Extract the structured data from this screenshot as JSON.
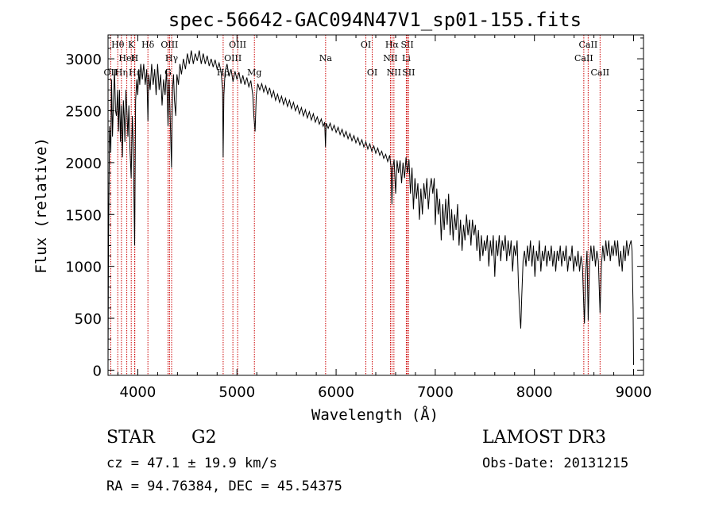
{
  "chart_data": {
    "type": "line",
    "title": "spec-56642-GAC094N47V1_sp01-155.fits",
    "xlabel": "Wavelength (Å)",
    "ylabel": "Flux (relative)",
    "xlim": [
      3700,
      9100
    ],
    "ylim": [
      -50,
      3230
    ],
    "xticks": [
      4000,
      5000,
      6000,
      7000,
      8000,
      9000
    ],
    "yticks": [
      0,
      500,
      1000,
      1500,
      2000,
      2500,
      3000
    ],
    "spectrum": [
      [
        3700,
        100
      ],
      [
        3705,
        1250
      ],
      [
        3715,
        2350
      ],
      [
        3728,
        2100
      ],
      [
        3735,
        2800
      ],
      [
        3745,
        2250
      ],
      [
        3755,
        2600
      ],
      [
        3765,
        2900
      ],
      [
        3775,
        2500
      ],
      [
        3785,
        2450
      ],
      [
        3797,
        2700
      ],
      [
        3805,
        2300
      ],
      [
        3815,
        2700
      ],
      [
        3825,
        2200
      ],
      [
        3835,
        2550
      ],
      [
        3845,
        2050
      ],
      [
        3855,
        2600
      ],
      [
        3865,
        2400
      ],
      [
        3870,
        2200
      ],
      [
        3880,
        2700
      ],
      [
        3890,
        2500
      ],
      [
        3900,
        2250
      ],
      [
        3910,
        2550
      ],
      [
        3920,
        2150
      ],
      [
        3933,
        1850
      ],
      [
        3945,
        2450
      ],
      [
        3955,
        2150
      ],
      [
        3968,
        1200
      ],
      [
        3978,
        2600
      ],
      [
        3990,
        2800
      ],
      [
        4000,
        2650
      ],
      [
        4010,
        2900
      ],
      [
        4020,
        2750
      ],
      [
        4030,
        2950
      ],
      [
        4045,
        2800
      ],
      [
        4060,
        2950
      ],
      [
        4075,
        2750
      ],
      [
        4090,
        2900
      ],
      [
        4102,
        2400
      ],
      [
        4110,
        2850
      ],
      [
        4125,
        2700
      ],
      [
        4140,
        2950
      ],
      [
        4155,
        2750
      ],
      [
        4170,
        2900
      ],
      [
        4185,
        2650
      ],
      [
        4200,
        2950
      ],
      [
        4215,
        2700
      ],
      [
        4230,
        2850
      ],
      [
        4245,
        2550
      ],
      [
        4260,
        2800
      ],
      [
        4275,
        2650
      ],
      [
        4290,
        2900
      ],
      [
        4305,
        2350
      ],
      [
        4315,
        2800
      ],
      [
        4325,
        2500
      ],
      [
        4340,
        1950
      ],
      [
        4350,
        2700
      ],
      [
        4360,
        2850
      ],
      [
        4370,
        2600
      ],
      [
        4383,
        2450
      ],
      [
        4395,
        2850
      ],
      [
        4410,
        2750
      ],
      [
        4425,
        2950
      ],
      [
        4440,
        2850
      ],
      [
        4460,
        3000
      ],
      [
        4480,
        2900
      ],
      [
        4500,
        3050
      ],
      [
        4520,
        2950
      ],
      [
        4540,
        3080
      ],
      [
        4560,
        2950
      ],
      [
        4580,
        3050
      ],
      [
        4600,
        2980
      ],
      [
        4620,
        3080
      ],
      [
        4640,
        2950
      ],
      [
        4660,
        3050
      ],
      [
        4680,
        2950
      ],
      [
        4700,
        3030
      ],
      [
        4720,
        2930
      ],
      [
        4740,
        3000
      ],
      [
        4760,
        2920
      ],
      [
        4780,
        2990
      ],
      [
        4800,
        2900
      ],
      [
        4820,
        2960
      ],
      [
        4840,
        2870
      ],
      [
        4855,
        2700
      ],
      [
        4861,
        2050
      ],
      [
        4868,
        2650
      ],
      [
        4880,
        2870
      ],
      [
        4900,
        2950
      ],
      [
        4920,
        2830
      ],
      [
        4940,
        2900
      ],
      [
        4960,
        2780
      ],
      [
        4980,
        2880
      ],
      [
        5000,
        2800
      ],
      [
        5020,
        2870
      ],
      [
        5040,
        2760
      ],
      [
        5060,
        2840
      ],
      [
        5080,
        2750
      ],
      [
        5100,
        2820
      ],
      [
        5120,
        2730
      ],
      [
        5140,
        2790
      ],
      [
        5160,
        2650
      ],
      [
        5170,
        2450
      ],
      [
        5183,
        2300
      ],
      [
        5195,
        2650
      ],
      [
        5210,
        2760
      ],
      [
        5230,
        2700
      ],
      [
        5250,
        2760
      ],
      [
        5270,
        2680
      ],
      [
        5290,
        2740
      ],
      [
        5310,
        2660
      ],
      [
        5330,
        2720
      ],
      [
        5350,
        2630
      ],
      [
        5370,
        2690
      ],
      [
        5390,
        2600
      ],
      [
        5410,
        2660
      ],
      [
        5430,
        2580
      ],
      [
        5450,
        2640
      ],
      [
        5470,
        2560
      ],
      [
        5490,
        2620
      ],
      [
        5510,
        2540
      ],
      [
        5530,
        2600
      ],
      [
        5550,
        2520
      ],
      [
        5570,
        2580
      ],
      [
        5590,
        2500
      ],
      [
        5610,
        2550
      ],
      [
        5630,
        2470
      ],
      [
        5650,
        2530
      ],
      [
        5670,
        2450
      ],
      [
        5690,
        2510
      ],
      [
        5710,
        2430
      ],
      [
        5730,
        2490
      ],
      [
        5750,
        2410
      ],
      [
        5770,
        2470
      ],
      [
        5790,
        2390
      ],
      [
        5810,
        2440
      ],
      [
        5830,
        2370
      ],
      [
        5850,
        2420
      ],
      [
        5870,
        2350
      ],
      [
        5885,
        2390
      ],
      [
        5893,
        2150
      ],
      [
        5900,
        2380
      ],
      [
        5920,
        2330
      ],
      [
        5940,
        2380
      ],
      [
        5960,
        2310
      ],
      [
        5980,
        2360
      ],
      [
        6000,
        2290
      ],
      [
        6020,
        2340
      ],
      [
        6040,
        2270
      ],
      [
        6060,
        2320
      ],
      [
        6080,
        2250
      ],
      [
        6100,
        2300
      ],
      [
        6120,
        2230
      ],
      [
        6140,
        2280
      ],
      [
        6160,
        2210
      ],
      [
        6180,
        2260
      ],
      [
        6200,
        2190
      ],
      [
        6220,
        2240
      ],
      [
        6240,
        2170
      ],
      [
        6260,
        2220
      ],
      [
        6280,
        2150
      ],
      [
        6300,
        2200
      ],
      [
        6320,
        2130
      ],
      [
        6340,
        2180
      ],
      [
        6360,
        2110
      ],
      [
        6380,
        2160
      ],
      [
        6400,
        2090
      ],
      [
        6420,
        2140
      ],
      [
        6440,
        2070
      ],
      [
        6460,
        2110
      ],
      [
        6480,
        2040
      ],
      [
        6500,
        2080
      ],
      [
        6520,
        2010
      ],
      [
        6540,
        2070
      ],
      [
        6555,
        1950
      ],
      [
        6563,
        1600
      ],
      [
        6572,
        1950
      ],
      [
        6585,
        2030
      ],
      [
        6600,
        1700
      ],
      [
        6615,
        2020
      ],
      [
        6630,
        1900
      ],
      [
        6645,
        2020
      ],
      [
        6660,
        1800
      ],
      [
        6675,
        2000
      ],
      [
        6690,
        1850
      ],
      [
        6705,
        2050
      ],
      [
        6720,
        1900
      ],
      [
        6735,
        2030
      ],
      [
        6750,
        1700
      ],
      [
        6765,
        1950
      ],
      [
        6780,
        1550
      ],
      [
        6795,
        1850
      ],
      [
        6810,
        1650
      ],
      [
        6825,
        1800
      ],
      [
        6840,
        1450
      ],
      [
        6855,
        1750
      ],
      [
        6870,
        1500
      ],
      [
        6885,
        1800
      ],
      [
        6900,
        1650
      ],
      [
        6915,
        1850
      ],
      [
        6930,
        1550
      ],
      [
        6945,
        1750
      ],
      [
        6960,
        1850
      ],
      [
        6975,
        1700
      ],
      [
        6990,
        1850
      ],
      [
        7000,
        1400
      ],
      [
        7015,
        1750
      ],
      [
        7030,
        1500
      ],
      [
        7045,
        1650
      ],
      [
        7060,
        1250
      ],
      [
        7075,
        1600
      ],
      [
        7090,
        1350
      ],
      [
        7105,
        1650
      ],
      [
        7120,
        1400
      ],
      [
        7135,
        1700
      ],
      [
        7150,
        1300
      ],
      [
        7165,
        1550
      ],
      [
        7180,
        1250
      ],
      [
        7195,
        1500
      ],
      [
        7210,
        1350
      ],
      [
        7225,
        1600
      ],
      [
        7240,
        1200
      ],
      [
        7255,
        1450
      ],
      [
        7270,
        1150
      ],
      [
        7285,
        1400
      ],
      [
        7300,
        1250
      ],
      [
        7315,
        1500
      ],
      [
        7330,
        1300
      ],
      [
        7345,
        1450
      ],
      [
        7360,
        1200
      ],
      [
        7375,
        1450
      ],
      [
        7390,
        1300
      ],
      [
        7405,
        1400
      ],
      [
        7420,
        1150
      ],
      [
        7435,
        1350
      ],
      [
        7450,
        1050
      ],
      [
        7465,
        1300
      ],
      [
        7480,
        1100
      ],
      [
        7495,
        1250
      ],
      [
        7510,
        1150
      ],
      [
        7525,
        1300
      ],
      [
        7540,
        1000
      ],
      [
        7555,
        1250
      ],
      [
        7570,
        1100
      ],
      [
        7585,
        1300
      ],
      [
        7600,
        900
      ],
      [
        7615,
        1250
      ],
      [
        7630,
        1100
      ],
      [
        7645,
        1300
      ],
      [
        7660,
        1050
      ],
      [
        7675,
        1250
      ],
      [
        7690,
        1150
      ],
      [
        7705,
        1300
      ],
      [
        7720,
        1050
      ],
      [
        7735,
        1250
      ],
      [
        7750,
        1100
      ],
      [
        7765,
        1250
      ],
      [
        7780,
        950
      ],
      [
        7795,
        1200
      ],
      [
        7810,
        1100
      ],
      [
        7825,
        1250
      ],
      [
        7840,
        800
      ],
      [
        7852,
        550
      ],
      [
        7862,
        400
      ],
      [
        7872,
        700
      ],
      [
        7885,
        1050
      ],
      [
        7900,
        1150
      ],
      [
        7915,
        1000
      ],
      [
        7930,
        1200
      ],
      [
        7945,
        1050
      ],
      [
        7960,
        1250
      ],
      [
        7975,
        1000
      ],
      [
        7990,
        1200
      ],
      [
        8005,
        900
      ],
      [
        8020,
        1150
      ],
      [
        8035,
        1050
      ],
      [
        8050,
        1250
      ],
      [
        8065,
        950
      ],
      [
        8080,
        1150
      ],
      [
        8095,
        1050
      ],
      [
        8110,
        1200
      ],
      [
        8125,
        1000
      ],
      [
        8140,
        1150
      ],
      [
        8155,
        1050
      ],
      [
        8170,
        1200
      ],
      [
        8185,
        1000
      ],
      [
        8200,
        1150
      ],
      [
        8215,
        950
      ],
      [
        8230,
        1150
      ],
      [
        8245,
        1050
      ],
      [
        8260,
        1200
      ],
      [
        8275,
        1000
      ],
      [
        8290,
        1150
      ],
      [
        8305,
        1050
      ],
      [
        8320,
        1200
      ],
      [
        8335,
        950
      ],
      [
        8350,
        1100
      ],
      [
        8365,
        1050
      ],
      [
        8380,
        1200
      ],
      [
        8395,
        950
      ],
      [
        8410,
        1100
      ],
      [
        8425,
        1000
      ],
      [
        8440,
        1150
      ],
      [
        8455,
        950
      ],
      [
        8470,
        1100
      ],
      [
        8485,
        1000
      ],
      [
        8498,
        600
      ],
      [
        8505,
        450
      ],
      [
        8515,
        900
      ],
      [
        8530,
        1150
      ],
      [
        8542,
        480
      ],
      [
        8555,
        1000
      ],
      [
        8570,
        1200
      ],
      [
        8585,
        1050
      ],
      [
        8600,
        1200
      ],
      [
        8615,
        1000
      ],
      [
        8630,
        1150
      ],
      [
        8645,
        1050
      ],
      [
        8662,
        550
      ],
      [
        8675,
        1000
      ],
      [
        8690,
        1200
      ],
      [
        8705,
        1050
      ],
      [
        8720,
        1250
      ],
      [
        8735,
        1100
      ],
      [
        8750,
        1250
      ],
      [
        8765,
        1050
      ],
      [
        8780,
        1200
      ],
      [
        8795,
        1100
      ],
      [
        8810,
        1250
      ],
      [
        8825,
        1100
      ],
      [
        8840,
        1250
      ],
      [
        8855,
        1000
      ],
      [
        8870,
        1150
      ],
      [
        8885,
        950
      ],
      [
        8900,
        1200
      ],
      [
        8915,
        1050
      ],
      [
        8930,
        1250
      ],
      [
        8945,
        1100
      ],
      [
        8960,
        1200
      ],
      [
        8975,
        1250
      ],
      [
        8985,
        1150
      ],
      [
        8995,
        600
      ],
      [
        9000,
        50
      ]
    ],
    "line_markers": [
      {
        "label": "OII",
        "wavelength": 3727,
        "row": 2
      },
      {
        "label": "Hθ",
        "wavelength": 3798,
        "row": 0
      },
      {
        "label": "Hη",
        "wavelength": 3835,
        "row": 2
      },
      {
        "label": "HeI",
        "wavelength": 3889,
        "row": 1
      },
      {
        "label": "K",
        "wavelength": 3934,
        "row": 0
      },
      {
        "label": "Hε",
        "wavelength": 3970,
        "row": 2
      },
      {
        "label": "H",
        "wavelength": 3968,
        "row": 1
      },
      {
        "label": "Hδ",
        "wavelength": 4102,
        "row": 0
      },
      {
        "label": "OIII",
        "wavelength": 4320,
        "row": 0
      },
      {
        "label": "Hγ",
        "wavelength": 4341,
        "row": 1
      },
      {
        "label": "G",
        "wavelength": 4305,
        "row": 2
      },
      {
        "label": "Hβ",
        "wavelength": 4861,
        "row": 2
      },
      {
        "label": "OIII",
        "wavelength": 4959,
        "row": 1
      },
      {
        "label": "OIII",
        "wavelength": 5007,
        "row": 0
      },
      {
        "label": "Mg",
        "wavelength": 5176,
        "row": 2
      },
      {
        "label": "Na",
        "wavelength": 5894,
        "row": 1
      },
      {
        "label": "OI",
        "wavelength": 6300,
        "row": 0
      },
      {
        "label": "OI",
        "wavelength": 6364,
        "row": 2
      },
      {
        "label": "Hα",
        "wavelength": 6563,
        "row": 0
      },
      {
        "label": "NII",
        "wavelength": 6548,
        "row": 1
      },
      {
        "label": "NII",
        "wavelength": 6583,
        "row": 2
      },
      {
        "label": "SII",
        "wavelength": 6717,
        "row": 0
      },
      {
        "label": "Li",
        "wavelength": 6708,
        "row": 1
      },
      {
        "label": "SII",
        "wavelength": 6731,
        "row": 2
      },
      {
        "label": "CaII",
        "wavelength": 8542,
        "row": 0
      },
      {
        "label": "CaII",
        "wavelength": 8498,
        "row": 1
      },
      {
        "label": "CaII",
        "wavelength": 8662,
        "row": 2
      }
    ],
    "colors": {
      "spectrum": "#000000",
      "marker_line": "#cc0000",
      "axis": "#000000"
    }
  },
  "info": {
    "object_class": "STAR",
    "subclass": "G2",
    "survey": "LAMOST DR3",
    "redshift_text": "cz = 47.1 ± 19.9 km/s",
    "obs_date": "Obs-Date: 20131215",
    "coords_text": "RA =  94.76384, DEC =  45.54375"
  }
}
